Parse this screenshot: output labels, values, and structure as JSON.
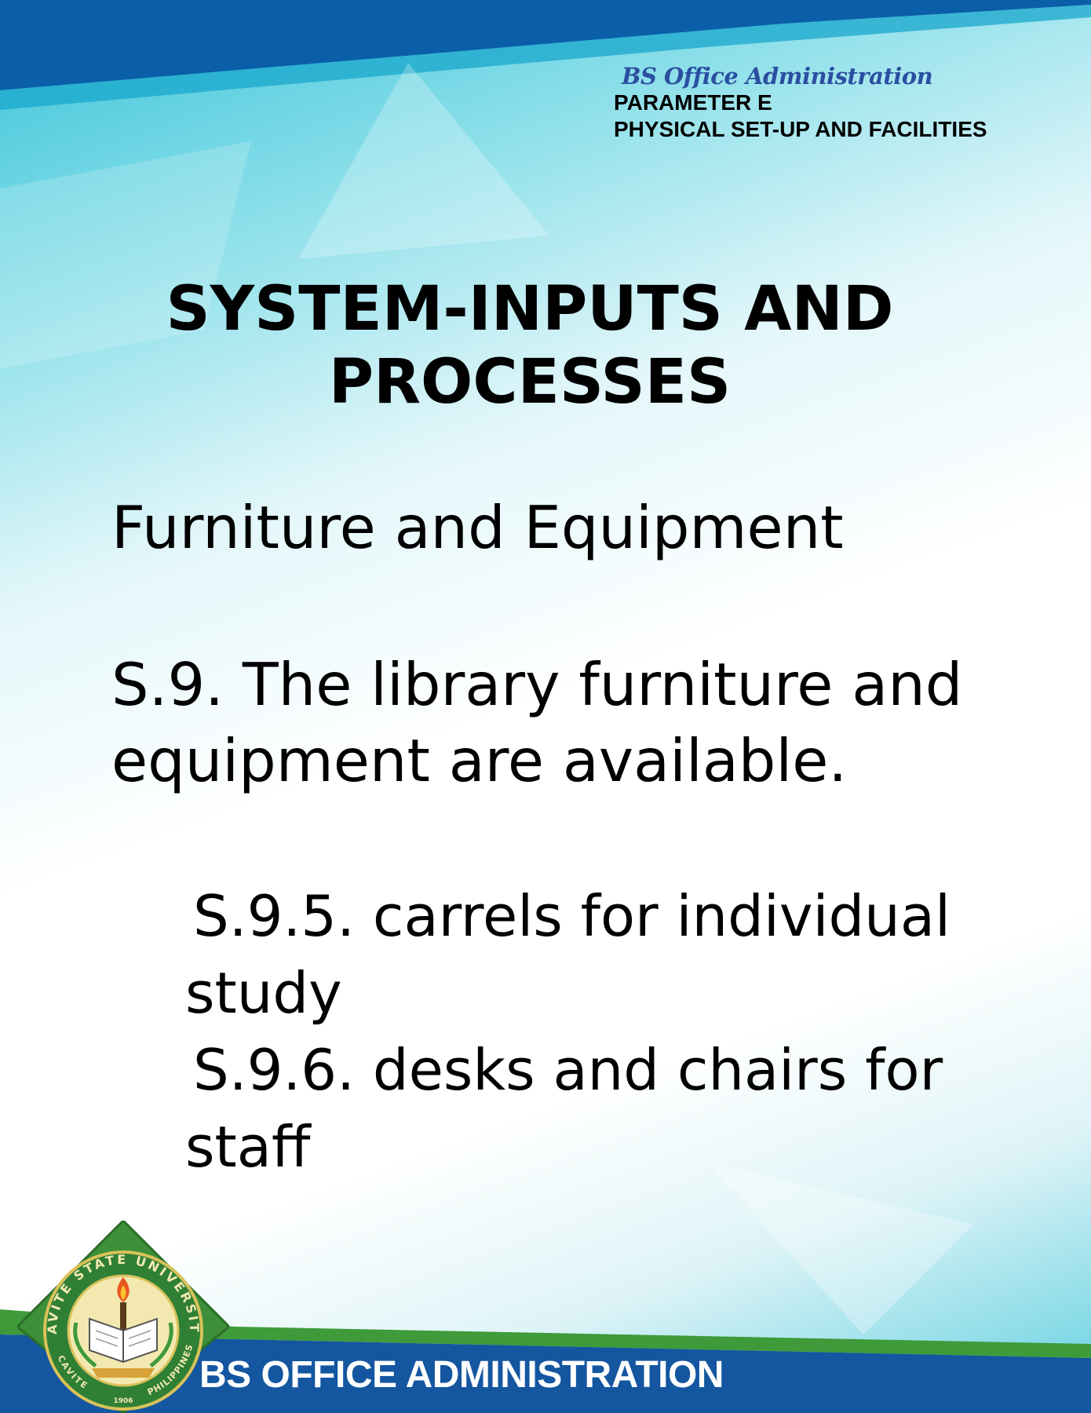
{
  "header": {
    "program_script": "BS Office Administration",
    "parameter": "PARAMETER E",
    "parameter_title": "PHYSICAL SET-UP AND FACILITIES"
  },
  "title": {
    "line1": "SYSTEM-INPUTS AND",
    "line2": "PROCESSES"
  },
  "section_title": "Furniture and Equipment",
  "standard": {
    "line1": "S.9. The library furniture and",
    "line2": "equipment are available."
  },
  "items": [
    {
      "number": "S.9.5.",
      "text_rest": "carrels for individual",
      "text_wrap": "study"
    },
    {
      "number": "S.9.6.",
      "text_rest": "desks and chairs for",
      "text_wrap": "staff"
    }
  ],
  "seal": {
    "arc_top": "CAVITE STATE UNIVERSITY",
    "bottom_left": "CAVITE",
    "bottom_right": "PHILIPPINES",
    "year": "1906"
  },
  "footer": {
    "label": "BS OFFICE ADMINISTRATION"
  },
  "colors": {
    "top_band": "#0a5fa8",
    "teal": "#37c3d6",
    "footer_band": "#1456a0",
    "green_band": "#3f9a3a",
    "script_title": "#2b4fa0"
  }
}
